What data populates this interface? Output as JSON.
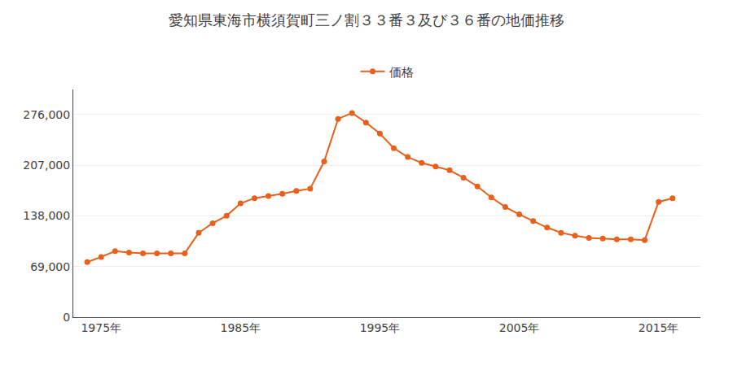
{
  "chart_data": {
    "type": "line",
    "title": "愛知県東海市横須賀町三ノ割３３番３及び３６番の地価推移",
    "x": [
      1974,
      1975,
      1976,
      1977,
      1978,
      1979,
      1980,
      1981,
      1982,
      1983,
      1984,
      1985,
      1986,
      1987,
      1988,
      1989,
      1990,
      1991,
      1992,
      1993,
      1994,
      1995,
      1996,
      1997,
      1998,
      1999,
      2000,
      2001,
      2002,
      2003,
      2004,
      2005,
      2006,
      2007,
      2008,
      2009,
      2010,
      2011,
      2012,
      2013,
      2014,
      2015,
      2016
    ],
    "series": [
      {
        "name": "価格",
        "color": "#E8601C",
        "marker": "circle",
        "values": [
          75000,
          82000,
          90000,
          88000,
          87000,
          87000,
          87000,
          87000,
          115000,
          128000,
          138000,
          155000,
          162000,
          165000,
          168000,
          172000,
          175000,
          212000,
          270000,
          278000,
          265000,
          250000,
          230000,
          218000,
          210000,
          205000,
          200000,
          190000,
          178000,
          163000,
          150000,
          140000,
          131000,
          122000,
          115000,
          111000,
          108000,
          107000,
          106000,
          106000,
          105000,
          157000,
          162000
        ]
      }
    ],
    "xlim": [
      1973,
      2018
    ],
    "xticks": [
      {
        "value": 1975,
        "label": "1975年"
      },
      {
        "value": 1985,
        "label": "1985年"
      },
      {
        "value": 1995,
        "label": "1995年"
      },
      {
        "value": 2005,
        "label": "2005年"
      },
      {
        "value": 2015,
        "label": "2015年"
      }
    ],
    "ylim": [
      0,
      310000
    ],
    "yticks": [
      0,
      {
        "value": 69000,
        "label": "69,000"
      },
      {
        "value": 138000,
        "label": "138,000"
      },
      {
        "value": 207000,
        "label": "207,000"
      },
      {
        "value": 276000,
        "label": "276,000"
      }
    ],
    "grid": true,
    "legend": "top"
  }
}
